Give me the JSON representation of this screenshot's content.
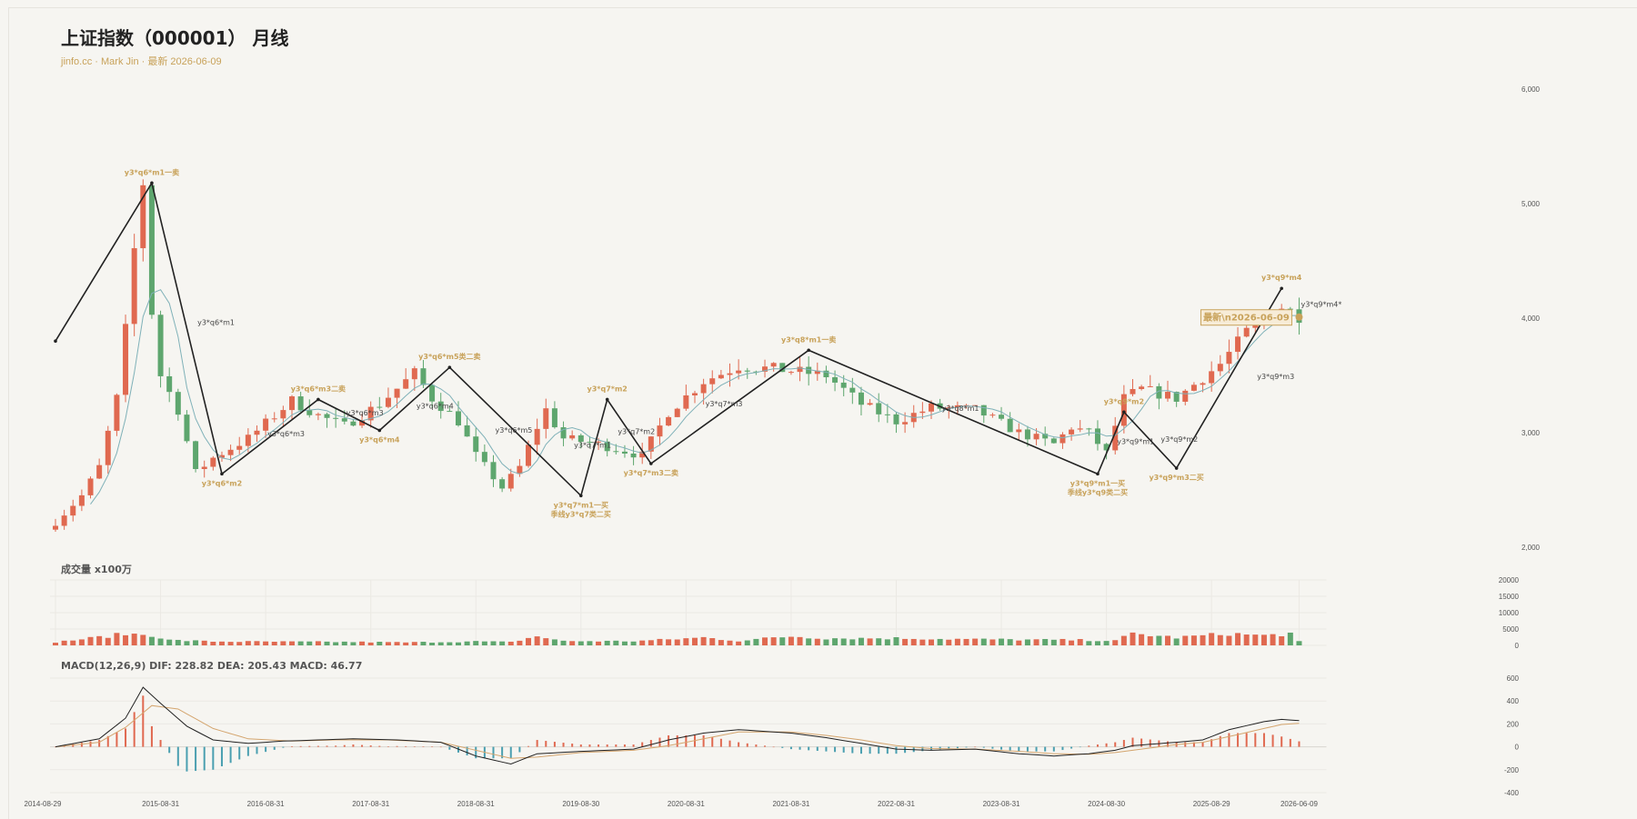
{
  "title": "上证指数（000001） 月线",
  "subtitle": "jinfo.cc · Mark Jin · 最新 2026-06-09",
  "volume_title": "成交量 x100万",
  "macd_title": "MACD(12,26,9) DIF: 228.82 DEA: 205.43 MACD: 46.77",
  "colors": {
    "up": "#e06950",
    "down": "#5ea66e",
    "ma": "#7fb1b8",
    "line": "#222222",
    "gold": "#c8a25a",
    "dif": "#222222",
    "dea": "#d4a56e",
    "macd_up": "#e06950",
    "macd_down": "#4a9fb0"
  },
  "chart_data": {
    "type": "candlestick",
    "price_axis": {
      "ticks": [
        2000,
        3000,
        4000,
        5000,
        6000
      ],
      "tick_labels": [
        "2,000",
        "3,000",
        "4,000",
        "5,000",
        "6,000"
      ],
      "range": [
        2000,
        6000
      ]
    },
    "volume_axis": {
      "ticks": [
        0,
        5000,
        10000,
        15000,
        20000
      ],
      "tick_labels": [
        "0",
        "5000",
        "10000",
        "15000",
        "20000"
      ],
      "range": [
        0,
        20000
      ]
    },
    "macd_axis": {
      "ticks": [
        -400,
        -200,
        0,
        200,
        400,
        600
      ],
      "tick_labels": [
        "-400",
        "-200",
        "0",
        "200",
        "400",
        "600"
      ],
      "range": [
        -400,
        600
      ]
    },
    "x_labels": [
      {
        "index": 0,
        "label": "2014-08-29"
      },
      {
        "index": 12,
        "label": "2015-08-31"
      },
      {
        "index": 24,
        "label": "2016-08-31"
      },
      {
        "index": 36,
        "label": "2017-08-31"
      },
      {
        "index": 48,
        "label": "2018-08-31"
      },
      {
        "index": 60,
        "label": "2019-08-30"
      },
      {
        "index": 72,
        "label": "2020-08-31"
      },
      {
        "index": 84,
        "label": "2021-08-31"
      },
      {
        "index": 96,
        "label": "2022-08-31"
      },
      {
        "index": 108,
        "label": "2023-08-31"
      },
      {
        "index": 120,
        "label": "2024-08-30"
      },
      {
        "index": 132,
        "label": "2025-08-29"
      },
      {
        "index": 142,
        "label": "2026-06-09"
      }
    ],
    "count": 143,
    "anchors": [
      [
        0,
        2220
      ],
      [
        3,
        2450
      ],
      [
        5,
        2700
      ],
      [
        7,
        3300
      ],
      [
        8,
        3900
      ],
      [
        9,
        4600
      ],
      [
        10,
        5180
      ],
      [
        11,
        4050
      ],
      [
        12,
        3500
      ],
      [
        14,
        3200
      ],
      [
        16,
        2650
      ],
      [
        18,
        2780
      ],
      [
        22,
        2950
      ],
      [
        27,
        3280
      ],
      [
        30,
        3150
      ],
      [
        33,
        3060
      ],
      [
        37,
        3250
      ],
      [
        41,
        3520
      ],
      [
        43,
        3300
      ],
      [
        46,
        3100
      ],
      [
        48,
        2800
      ],
      [
        51,
        2520
      ],
      [
        53,
        2700
      ],
      [
        55,
        3050
      ],
      [
        56,
        3200
      ],
      [
        58,
        2950
      ],
      [
        62,
        2900
      ],
      [
        67,
        2800
      ],
      [
        70,
        3180
      ],
      [
        74,
        3450
      ],
      [
        78,
        3580
      ],
      [
        83,
        3550
      ],
      [
        88,
        3500
      ],
      [
        92,
        3250
      ],
      [
        96,
        3100
      ],
      [
        100,
        3220
      ],
      [
        105,
        3200
      ],
      [
        110,
        3000
      ],
      [
        114,
        2900
      ],
      [
        116,
        3050
      ],
      [
        118,
        3000
      ],
      [
        120,
        2820
      ],
      [
        122,
        3300
      ],
      [
        124,
        3380
      ],
      [
        128,
        3300
      ],
      [
        133,
        3600
      ],
      [
        136,
        3880
      ],
      [
        140,
        4100
      ],
      [
        142,
        4020
      ]
    ],
    "vol_anchors": [
      [
        0,
        1000
      ],
      [
        4,
        2200
      ],
      [
        8,
        3500
      ],
      [
        11,
        3200
      ],
      [
        13,
        1600
      ],
      [
        18,
        1200
      ],
      [
        26,
        1100
      ],
      [
        34,
        1050
      ],
      [
        40,
        900
      ],
      [
        48,
        1200
      ],
      [
        52,
        1000
      ],
      [
        55,
        2800
      ],
      [
        58,
        1300
      ],
      [
        66,
        1300
      ],
      [
        70,
        1800
      ],
      [
        74,
        2400
      ],
      [
        78,
        1400
      ],
      [
        84,
        2800
      ],
      [
        88,
        2200
      ],
      [
        96,
        2200
      ],
      [
        104,
        1900
      ],
      [
        112,
        1700
      ],
      [
        118,
        1600
      ],
      [
        121,
        1400
      ],
      [
        123,
        3600
      ],
      [
        128,
        2400
      ],
      [
        134,
        3600
      ],
      [
        138,
        3000
      ],
      [
        141,
        3600
      ],
      [
        142,
        1100
      ]
    ],
    "dif": [
      [
        0,
        0
      ],
      [
        5,
        70
      ],
      [
        8,
        250
      ],
      [
        10,
        520
      ],
      [
        12,
        380
      ],
      [
        15,
        180
      ],
      [
        18,
        60
      ],
      [
        22,
        30
      ],
      [
        26,
        50
      ],
      [
        30,
        60
      ],
      [
        34,
        70
      ],
      [
        39,
        60
      ],
      [
        44,
        40
      ],
      [
        48,
        -80
      ],
      [
        52,
        -150
      ],
      [
        55,
        -60
      ],
      [
        60,
        -40
      ],
      [
        66,
        -20
      ],
      [
        70,
        60
      ],
      [
        74,
        120
      ],
      [
        78,
        150
      ],
      [
        84,
        120
      ],
      [
        88,
        80
      ],
      [
        92,
        30
      ],
      [
        96,
        -20
      ],
      [
        100,
        -30
      ],
      [
        105,
        -20
      ],
      [
        110,
        -60
      ],
      [
        114,
        -80
      ],
      [
        118,
        -60
      ],
      [
        121,
        -30
      ],
      [
        123,
        10
      ],
      [
        128,
        40
      ],
      [
        131,
        60
      ],
      [
        134,
        150
      ],
      [
        138,
        220
      ],
      [
        140,
        240
      ],
      [
        142,
        229
      ]
    ],
    "dea": [
      [
        0,
        0
      ],
      [
        5,
        40
      ],
      [
        8,
        170
      ],
      [
        11,
        360
      ],
      [
        14,
        330
      ],
      [
        18,
        160
      ],
      [
        22,
        70
      ],
      [
        27,
        50
      ],
      [
        32,
        60
      ],
      [
        38,
        60
      ],
      [
        44,
        40
      ],
      [
        48,
        -30
      ],
      [
        52,
        -100
      ],
      [
        55,
        -90
      ],
      [
        60,
        -50
      ],
      [
        66,
        -30
      ],
      [
        70,
        10
      ],
      [
        74,
        70
      ],
      [
        78,
        130
      ],
      [
        84,
        130
      ],
      [
        88,
        100
      ],
      [
        92,
        60
      ],
      [
        96,
        10
      ],
      [
        100,
        -15
      ],
      [
        105,
        -20
      ],
      [
        110,
        -40
      ],
      [
        114,
        -60
      ],
      [
        118,
        -65
      ],
      [
        121,
        -50
      ],
      [
        124,
        -20
      ],
      [
        128,
        20
      ],
      [
        131,
        40
      ],
      [
        134,
        90
      ],
      [
        138,
        160
      ],
      [
        140,
        195
      ],
      [
        142,
        205
      ]
    ],
    "zigzag": [
      {
        "i": 0,
        "v": 3800,
        "label": ""
      },
      {
        "i": 11,
        "v": 5180,
        "label": "y3*q6*m1一卖"
      },
      {
        "i": 19,
        "v": 2640,
        "label": "y3*q6*m2"
      },
      {
        "i": 30,
        "v": 3290,
        "label": "y3*q6*m3二卖"
      },
      {
        "i": 37,
        "v": 3020,
        "label": "y3*q6*m4"
      },
      {
        "i": 45,
        "v": 3570,
        "label": "y3*q6*m5类二卖"
      },
      {
        "i": 60,
        "v": 2450,
        "label": "y3*q7*m1一买"
      },
      {
        "i": 63,
        "v": 3290,
        "label": "y3*q7*m2"
      },
      {
        "i": 68,
        "v": 2730,
        "label": "y3*q7*m3二卖"
      },
      {
        "i": 86,
        "v": 3720,
        "label": "y3*q8*m1一卖"
      },
      {
        "i": 119,
        "v": 2640,
        "label": "y3*q9*m1一买"
      },
      {
        "i": 122,
        "v": 3180,
        "label": "y3*q9*m2"
      },
      {
        "i": 128,
        "v": 2690,
        "label": "y3*q9*m3二买"
      },
      {
        "i": 140,
        "v": 4260,
        "label": "y3*q9*m4"
      }
    ],
    "zigzag_extra_labels": [
      {
        "i": 60,
        "v": 2450,
        "label": "季线y3*q7类二买"
      },
      {
        "i": 119,
        "v": 2640,
        "label": "季线y3*q9类二买"
      }
    ],
    "small_labels": [
      {
        "i": 16,
        "v": 3940,
        "label": "y3*q6*m1"
      },
      {
        "i": 24,
        "v": 2970,
        "label": "y3*q6*m3"
      },
      {
        "i": 33,
        "v": 3150,
        "label": "y3*q6*m3"
      },
      {
        "i": 41,
        "v": 3210,
        "label": "y3*q6*m4"
      },
      {
        "i": 50,
        "v": 3000,
        "label": "y3*q6*m5"
      },
      {
        "i": 59,
        "v": 2870,
        "label": "y3*q7*m1"
      },
      {
        "i": 64,
        "v": 2990,
        "label": "y3*q7*m2"
      },
      {
        "i": 74,
        "v": 3230,
        "label": "y3*q7*m3"
      },
      {
        "i": 101,
        "v": 3190,
        "label": "y3*q8*m1"
      },
      {
        "i": 121,
        "v": 2900,
        "label": "y3*q9*m1"
      },
      {
        "i": 126,
        "v": 2920,
        "label": "y3*q9*m2"
      },
      {
        "i": 137,
        "v": 3470,
        "label": "y3*q9*m3"
      },
      {
        "i": 142,
        "v": 4100,
        "label": "y3*q9*m4*"
      }
    ],
    "latest_box": {
      "i": 142,
      "v": 4010,
      "label": "最新\\n2026-06-09"
    }
  }
}
